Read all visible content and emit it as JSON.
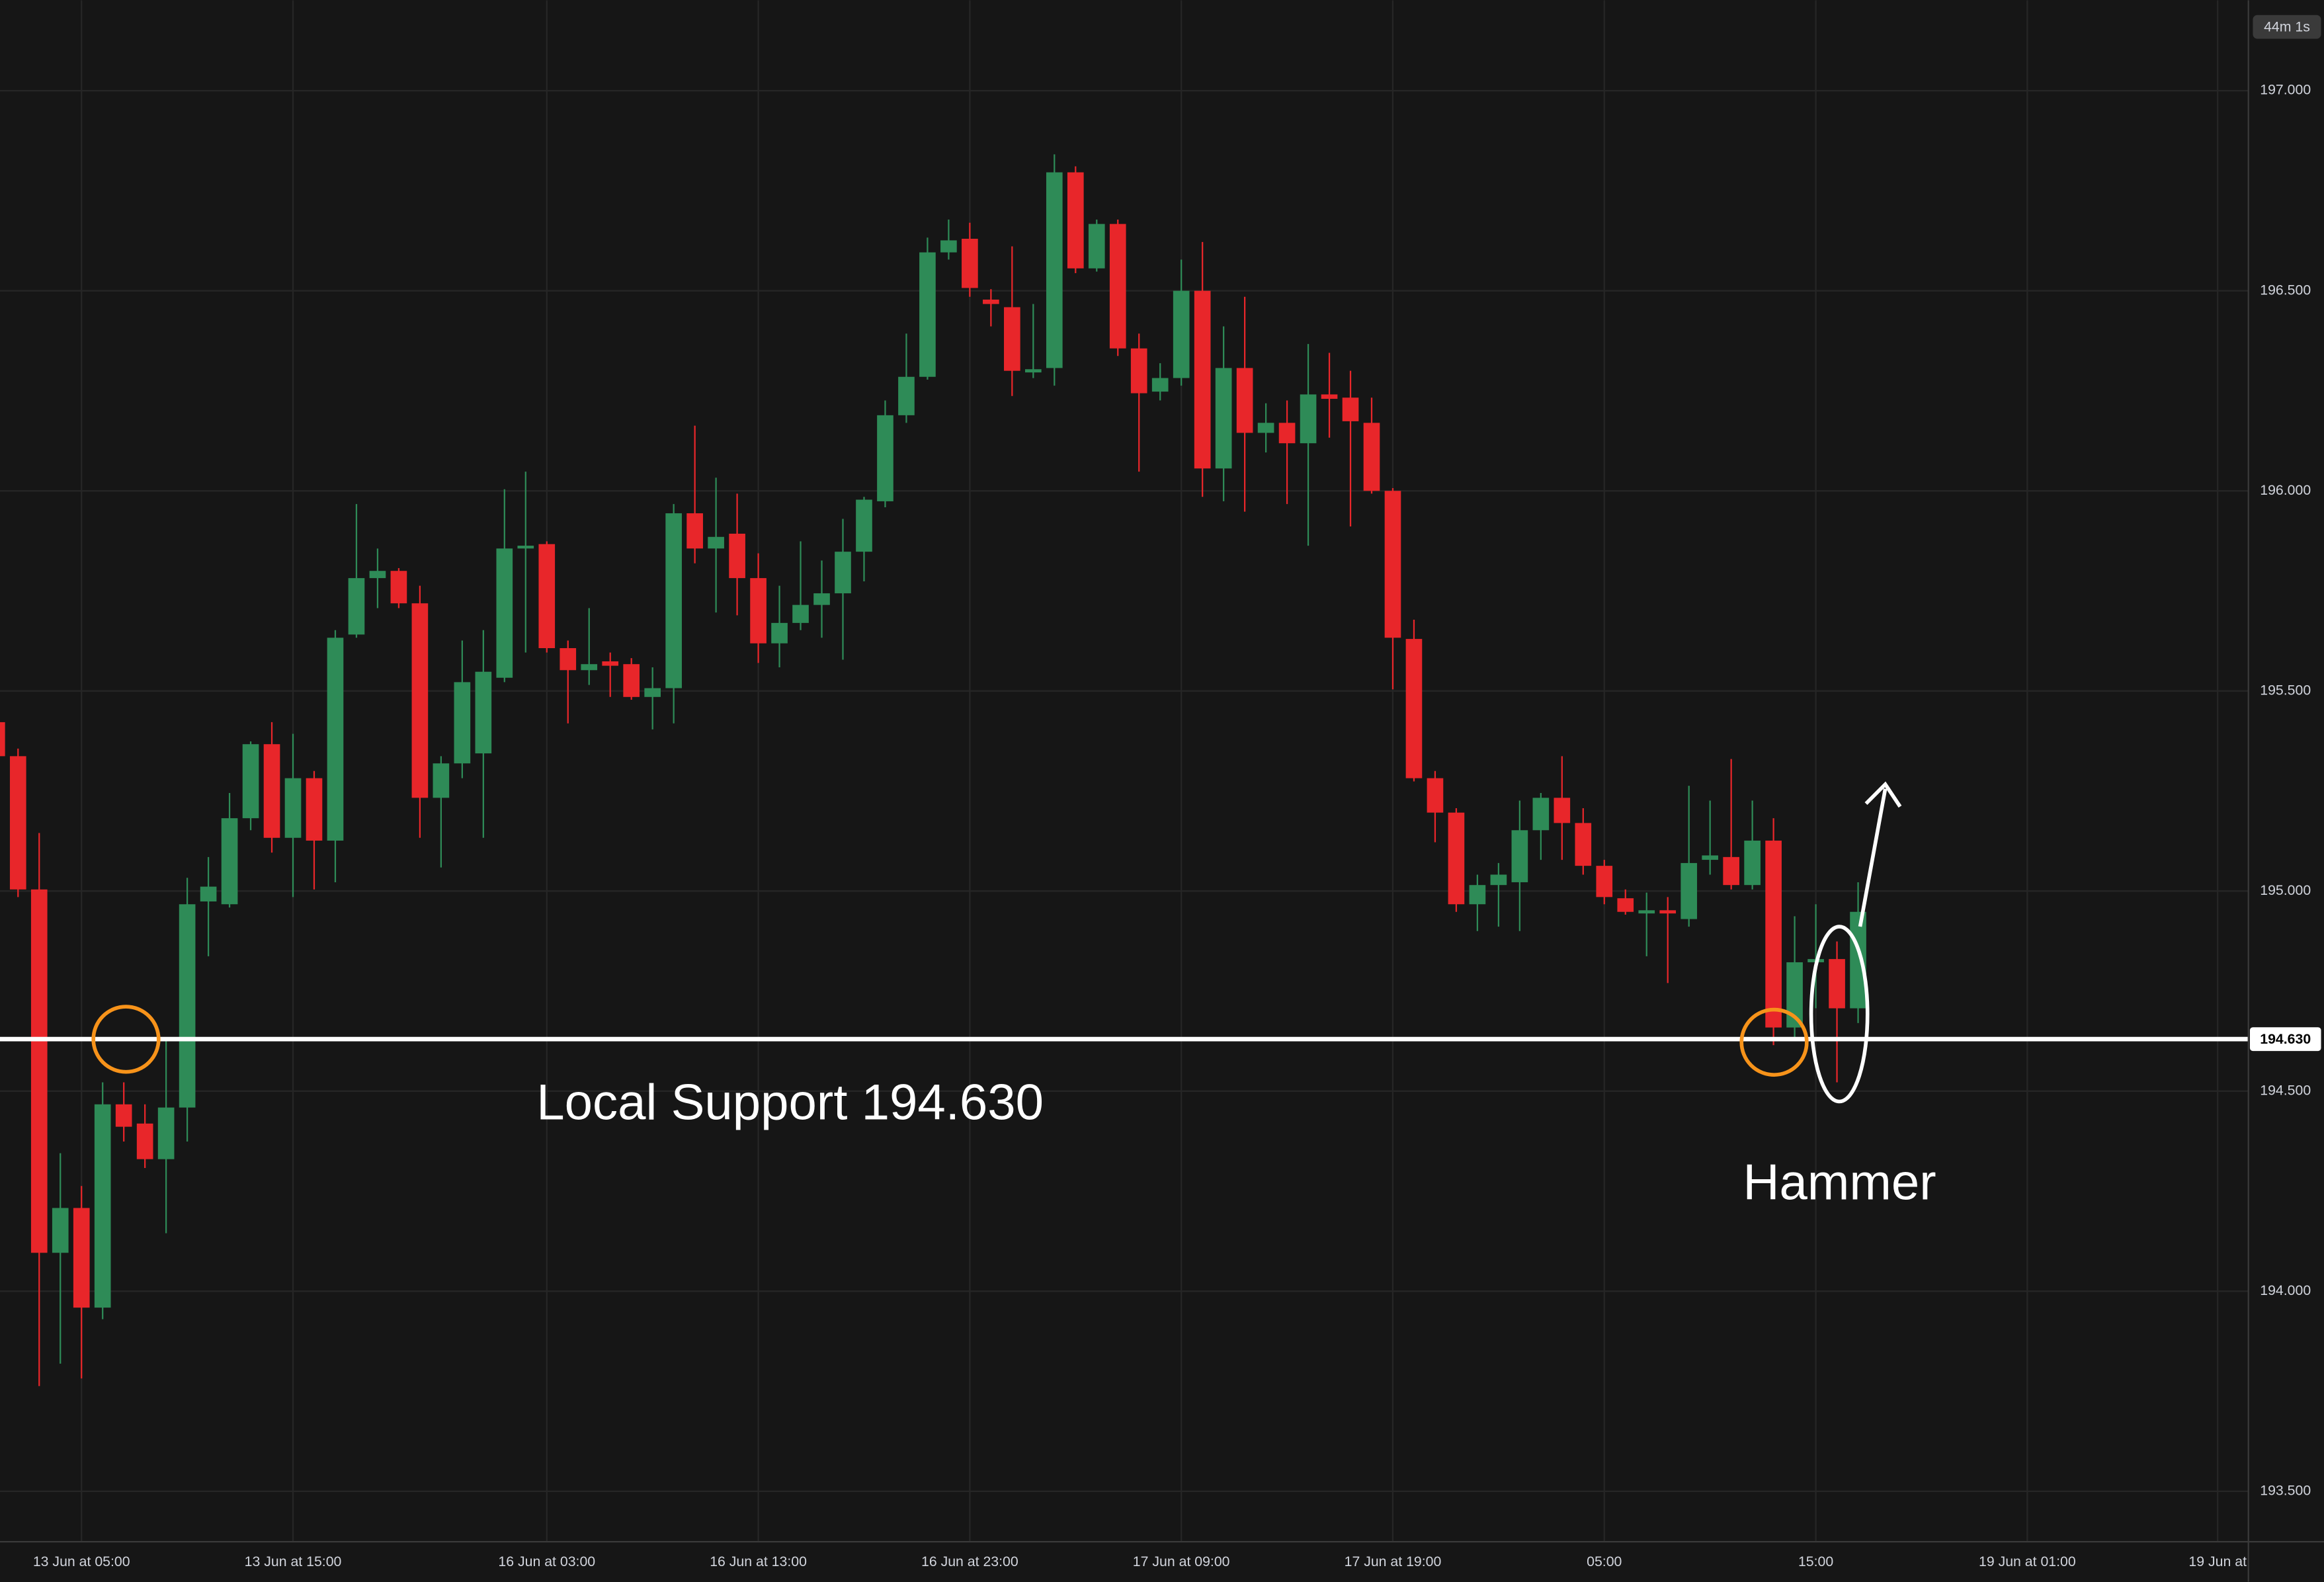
{
  "chart_data": {
    "type": "candlestick",
    "up_color": "#2e8b57",
    "down_color": "#e8262a",
    "grid": true,
    "countdown": "44m 1s",
    "ylim": [
      193.374,
      197.226
    ],
    "yticks": [
      {
        "value": 193.5,
        "label": "193.500"
      },
      {
        "value": 194,
        "label": "194.000"
      },
      {
        "value": 194.5,
        "label": "194.500"
      },
      {
        "value": 195,
        "label": "195.000"
      },
      {
        "value": 195.5,
        "label": "195.500"
      },
      {
        "value": 196,
        "label": "196.000"
      },
      {
        "value": 196.5,
        "label": "196.500"
      },
      {
        "value": 197,
        "label": "197.000"
      }
    ],
    "support_line": {
      "value": 194.63,
      "label": "194.630",
      "color": "#ffffff"
    },
    "annotations": [
      "Local Support 194.630",
      "Hammer"
    ],
    "categories": [
      null,
      null,
      null,
      null,
      "13 Jun at 05:00",
      null,
      null,
      null,
      null,
      null,
      null,
      null,
      null,
      null,
      "13 Jun at 15:00",
      null,
      null,
      null,
      null,
      null,
      null,
      null,
      null,
      null,
      null,
      null,
      "16 Jun at 03:00",
      null,
      null,
      null,
      null,
      null,
      null,
      null,
      null,
      null,
      "16 Jun at 13:00",
      null,
      null,
      null,
      null,
      null,
      null,
      null,
      null,
      null,
      "16 Jun at 23:00",
      null,
      null,
      null,
      null,
      null,
      null,
      null,
      null,
      null,
      "17 Jun at 09:00",
      null,
      null,
      null,
      null,
      null,
      null,
      null,
      null,
      null,
      "17 Jun at 19:00",
      null,
      null,
      null,
      null,
      null,
      null,
      null,
      null,
      null,
      "05:00",
      null,
      null,
      null,
      null,
      null,
      null,
      null,
      null,
      null,
      "15:00",
      null,
      null,
      null,
      null,
      null,
      null,
      null,
      null,
      null,
      "19 Jun at 01:00",
      null,
      null,
      null,
      null,
      null,
      null,
      null,
      null,
      "19 Jun at"
    ],
    "open": [
      195.422,
      195.337,
      195.004,
      194.096,
      194.208,
      193.959,
      194.467,
      194.419,
      194.33,
      194.459,
      194.974,
      194.967,
      195.182,
      195.367,
      195.133,
      195.282,
      195.126,
      195.641,
      195.782,
      195.8,
      195.719,
      195.233,
      195.319,
      195.344,
      195.533,
      195.856,
      195.867,
      195.607,
      195.552,
      195.574,
      195.567,
      195.485,
      195.507,
      195.944,
      195.856,
      195.893,
      195.782,
      195.619,
      195.67,
      195.715,
      195.744,
      195.848,
      195.974,
      196.189,
      196.285,
      196.596,
      196.63,
      196.478,
      196.459,
      196.296,
      196.307,
      196.796,
      196.556,
      196.667,
      196.356,
      196.248,
      196.282,
      196.5,
      196.056,
      196.307,
      196.145,
      196.17,
      196.119,
      196.241,
      196.233,
      196.17,
      196.0,
      195.63,
      195.282,
      195.196,
      194.967,
      195.015,
      195.022,
      195.152,
      195.233,
      195.17,
      195.063,
      194.982,
      194.944,
      194.952,
      194.93,
      195.078,
      195.085,
      195.015,
      195.126,
      194.659,
      194.822,
      194.83,
      194.707,
      null,
      null,
      null,
      null,
      null,
      null,
      null,
      null,
      null,
      null,
      null,
      null,
      null,
      null,
      null,
      null,
      null
    ],
    "high": [
      195.448,
      195.356,
      195.145,
      194.345,
      194.263,
      194.522,
      194.522,
      194.467,
      194.633,
      195.033,
      195.085,
      195.245,
      195.374,
      195.422,
      195.393,
      195.3,
      195.652,
      195.967,
      195.856,
      195.807,
      195.763,
      195.337,
      195.626,
      195.652,
      196.004,
      196.048,
      195.874,
      195.626,
      195.707,
      195.596,
      195.582,
      195.559,
      195.967,
      196.163,
      196.033,
      195.993,
      195.844,
      195.763,
      195.874,
      195.826,
      195.93,
      195.985,
      196.226,
      196.393,
      196.633,
      196.678,
      196.67,
      196.504,
      196.611,
      196.467,
      196.841,
      196.811,
      196.678,
      196.678,
      196.393,
      196.319,
      196.578,
      196.622,
      196.411,
      196.485,
      196.219,
      196.226,
      196.367,
      196.345,
      196.3,
      196.233,
      196.007,
      195.678,
      195.3,
      195.207,
      195.041,
      195.07,
      195.226,
      195.245,
      195.337,
      195.207,
      195.078,
      195.004,
      194.996,
      194.985,
      195.263,
      195.226,
      195.33,
      195.226,
      195.182,
      194.937,
      194.967,
      194.874,
      195.022,
      null,
      null,
      null,
      null,
      null,
      null,
      null,
      null,
      null,
      null,
      null,
      null,
      null,
      null,
      null,
      null,
      null
    ],
    "low": [
      195.319,
      194.985,
      193.763,
      193.819,
      193.782,
      193.93,
      194.374,
      194.308,
      194.145,
      194.374,
      194.837,
      194.959,
      195.152,
      195.096,
      194.985,
      195.004,
      195.022,
      195.633,
      195.707,
      195.707,
      195.133,
      195.059,
      195.282,
      195.133,
      195.522,
      195.596,
      195.596,
      195.419,
      195.515,
      195.485,
      195.478,
      195.404,
      195.419,
      195.819,
      195.696,
      195.689,
      195.57,
      195.559,
      195.652,
      195.633,
      195.578,
      195.774,
      195.959,
      196.17,
      196.278,
      196.578,
      196.485,
      196.411,
      196.237,
      196.282,
      196.263,
      196.544,
      196.548,
      196.337,
      196.048,
      196.226,
      196.263,
      195.985,
      195.974,
      195.948,
      196.096,
      195.967,
      195.863,
      196.133,
      195.911,
      195.993,
      195.504,
      195.274,
      195.122,
      194.948,
      194.9,
      194.911,
      194.9,
      195.078,
      195.078,
      195.041,
      194.967,
      194.941,
      194.837,
      194.77,
      194.911,
      195.041,
      195.004,
      195.004,
      194.615,
      194.633,
      194.707,
      194.522,
      194.67,
      null,
      null,
      null,
      null,
      null,
      null,
      null,
      null,
      null,
      null,
      null,
      null,
      null,
      null,
      null,
      null,
      null
    ],
    "close": [
      195.337,
      195.004,
      194.096,
      194.208,
      193.959,
      194.467,
      194.411,
      194.33,
      194.459,
      194.967,
      195.011,
      195.182,
      195.367,
      195.133,
      195.282,
      195.126,
      195.633,
      195.782,
      195.8,
      195.719,
      195.233,
      195.319,
      195.522,
      195.548,
      195.856,
      195.863,
      195.607,
      195.552,
      195.567,
      195.563,
      195.485,
      195.507,
      195.944,
      195.856,
      195.885,
      195.782,
      195.619,
      195.67,
      195.715,
      195.744,
      195.848,
      195.978,
      196.189,
      196.285,
      196.596,
      196.626,
      196.507,
      196.467,
      196.3,
      196.304,
      196.796,
      196.556,
      196.667,
      196.356,
      196.244,
      196.282,
      196.5,
      196.056,
      196.307,
      196.145,
      196.17,
      196.119,
      196.241,
      196.23,
      196.174,
      196.0,
      195.633,
      195.282,
      195.196,
      194.967,
      195.015,
      195.041,
      195.152,
      195.233,
      195.17,
      195.063,
      194.985,
      194.948,
      194.952,
      194.944,
      195.07,
      195.089,
      195.015,
      195.126,
      194.659,
      194.822,
      194.83,
      194.707,
      194.948,
      null,
      null,
      null,
      null,
      null,
      null,
      null,
      null,
      null,
      null,
      null,
      null,
      null,
      null,
      null,
      null,
      null
    ]
  }
}
